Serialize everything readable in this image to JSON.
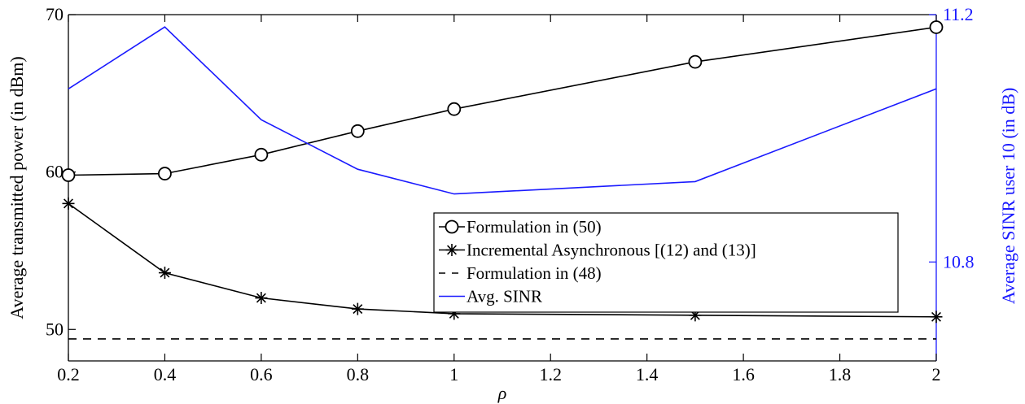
{
  "chart_data": {
    "type": "line",
    "x": [
      0.2,
      0.4,
      0.6,
      0.8,
      1,
      1.5,
      2
    ],
    "xlabel": "ρ",
    "ylabel": "Average transmitted power (in dBm)",
    "ylabel_right": "Average SINR user 10 (in dB)",
    "xlim": [
      0.2,
      2
    ],
    "ylim": [
      48,
      70
    ],
    "ylim_right": [
      10.64,
      11.2
    ],
    "x_ticks": [
      "0.2",
      "0.4",
      "0.6",
      "0.8",
      "1",
      "1.2",
      "1.4",
      "1.6",
      "1.8",
      "2"
    ],
    "x_tick_values": [
      0.2,
      0.4,
      0.6,
      0.8,
      1.0,
      1.2,
      1.4,
      1.6,
      1.8,
      2.0
    ],
    "y_ticks": [
      "50",
      "60",
      "70"
    ],
    "y_tick_values": [
      50,
      60,
      70
    ],
    "y_ticks_right": [
      "10.8",
      "11.2"
    ],
    "y_tick_values_right": [
      10.8,
      11.2
    ],
    "grid": false,
    "legend_position": "center-right",
    "series": [
      {
        "name": "Formulation in (50)",
        "axis": "left",
        "marker": "circle",
        "line": "solid",
        "color": "#000000",
        "values": [
          59.8,
          59.9,
          61.1,
          62.6,
          64.0,
          67.0,
          69.2
        ]
      },
      {
        "name": "Incremental Asynchronous [(12) and (13)]",
        "axis": "left",
        "marker": "asterisk",
        "line": "solid",
        "color": "#000000",
        "values": [
          58.0,
          53.6,
          52.0,
          51.3,
          51.0,
          50.9,
          50.8
        ]
      },
      {
        "name": "Formulation in (48)",
        "axis": "left",
        "marker": "none",
        "line": "dashed",
        "color": "#000000",
        "values": [
          49.4,
          49.4,
          49.4,
          49.4,
          49.4,
          49.4,
          49.4
        ]
      },
      {
        "name": "Avg. SINR",
        "axis": "right",
        "marker": "none",
        "line": "solid",
        "color": "#1a1aff",
        "values": [
          11.08,
          11.18,
          11.03,
          10.95,
          10.91,
          10.93,
          11.08
        ]
      }
    ]
  }
}
